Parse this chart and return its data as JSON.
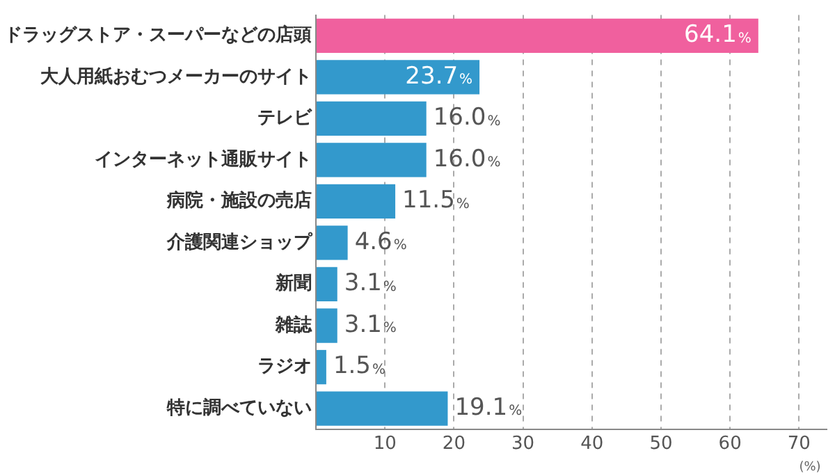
{
  "chart_data": {
    "type": "bar",
    "orientation": "horizontal",
    "xlabel": "(%)",
    "categories": [
      "ドラッグストア・スーパーなどの店頭",
      "大人用紙おむつメーカーのサイト",
      "テレビ",
      "インターネット通販サイト",
      "病院・施設の売店",
      "介護関連ショップ",
      "新聞",
      "雑誌",
      "ラジオ",
      "特に調べていない"
    ],
    "values": [
      64.1,
      23.7,
      16.0,
      16.0,
      11.5,
      4.6,
      3.1,
      3.1,
      1.5,
      19.1
    ],
    "colors": [
      "#f0609e",
      "#3399cc",
      "#3399cc",
      "#3399cc",
      "#3399cc",
      "#3399cc",
      "#3399cc",
      "#3399cc",
      "#3399cc",
      "#3399cc"
    ],
    "value_labels": [
      "64.1%",
      "23.7%",
      "16.0%",
      "16.0%",
      "11.5%",
      "4.6%",
      "3.1%",
      "3.1%",
      "1.5%",
      "19.1%"
    ],
    "xlim": [
      0,
      74
    ],
    "xticks": [
      {
        "value": 0,
        "label": null
      },
      10,
      20,
      30,
      40,
      50,
      60,
      70
    ],
    "grid": "x"
  }
}
